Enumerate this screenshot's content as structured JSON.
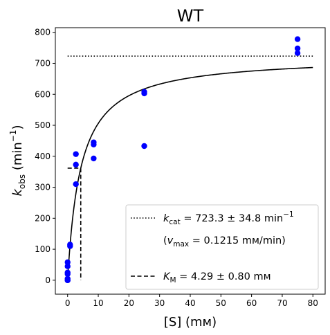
{
  "chart_data": {
    "type": "scatter",
    "title": "WT",
    "xlabel": "[S] (mм)",
    "ylabel": "k_obs (min⁻¹)",
    "xlim": [
      -4,
      84
    ],
    "ylim": [
      -45,
      815
    ],
    "x_ticks": [
      0,
      10,
      20,
      30,
      40,
      50,
      60,
      70,
      80
    ],
    "y_ticks": [
      0,
      100,
      200,
      300,
      400,
      500,
      600,
      700,
      800
    ],
    "grid": false,
    "legend_position": "bottom-right",
    "colors": {
      "points": "#0000ff",
      "lines": "#000000"
    },
    "series": [
      {
        "kind": "points",
        "x": [
          0,
          0,
          0,
          0,
          0,
          0,
          0,
          0.8,
          0.8,
          2.7,
          2.7,
          2.7,
          8.5,
          8.5,
          8.5,
          25,
          25,
          25,
          75,
          75,
          75
        ],
        "y": [
          0,
          5,
          20,
          25,
          45,
          58,
          0,
          110,
          115,
          310,
          373,
          407,
          393,
          438,
          445,
          433,
          603,
          608,
          733,
          748,
          778
        ]
      },
      {
        "kind": "fit",
        "vmax": 723.3,
        "km": 4.29,
        "x_range": [
          0,
          80
        ]
      },
      {
        "kind": "kcat-line",
        "y": 723.3,
        "x_range": [
          0,
          80
        ]
      },
      {
        "kind": "km-marker",
        "x": 4.29,
        "y": 361.65,
        "x_start": 0
      }
    ],
    "legend": {
      "kcat": {
        "main": "k",
        "sub": "cat",
        "rest": " = 723.3 ± 34.8 min",
        "sup": "−1"
      },
      "vmax": {
        "open": "(",
        "main": "v",
        "sub": "max",
        "rest": " = 0.1215 mм/min)"
      },
      "km": {
        "main": "K",
        "sub": "M",
        "rest": " = 4.29 ± 0.80 mм"
      }
    },
    "ylabel_parts": {
      "main": "k",
      "sub": "obs",
      "rest": " (min",
      "sup": "−1",
      "close": ")"
    }
  }
}
